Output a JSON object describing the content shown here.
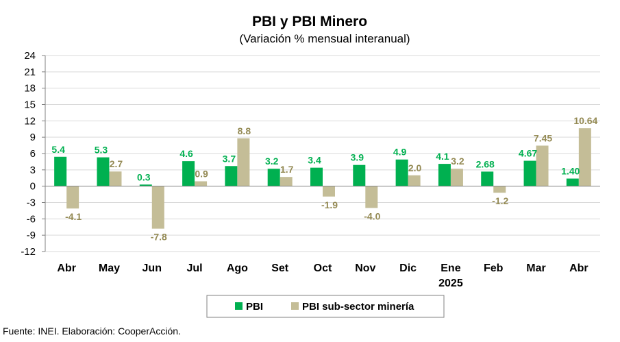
{
  "chart_data": {
    "type": "bar",
    "title": "PBI y PBI Minero",
    "subtitle": "(Variación % mensual interanual)",
    "categories": [
      "Abr",
      "May",
      "Jun",
      "Jul",
      "Ago",
      "Set",
      "Oct",
      "Nov",
      "Dic",
      "Ene",
      "Feb",
      "Mar",
      "Abr"
    ],
    "year_label": "2025",
    "series": [
      {
        "name": "PBI",
        "color": "#00b050",
        "values": [
          5.4,
          5.3,
          0.3,
          4.6,
          3.7,
          3.2,
          3.4,
          3.9,
          4.9,
          4.1,
          2.68,
          4.67,
          1.4
        ],
        "labels": [
          "5.4",
          "5.3",
          "0.3",
          "4.6",
          "3.7",
          "3.2",
          "3.4",
          "3.9",
          "4.9",
          "4.1",
          "2.68",
          "4.67",
          "1.40"
        ]
      },
      {
        "name": "PBI sub-sector minería",
        "color": "#c4bd97",
        "values": [
          -4.1,
          2.7,
          -7.8,
          0.9,
          8.8,
          1.7,
          -1.9,
          -4.0,
          2.0,
          3.2,
          -1.2,
          7.45,
          10.64
        ],
        "labels": [
          "-4.1",
          "2.7",
          "-7.8",
          "0.9",
          "8.8",
          "1.7",
          "-1.9",
          "-4.0",
          "2.0",
          "3.2",
          "-1.2",
          "7.45",
          "10.64"
        ]
      }
    ],
    "ylim": [
      -12,
      24
    ],
    "yticks": [
      24,
      21,
      18,
      15,
      12,
      9,
      6,
      3,
      0,
      -3,
      -6,
      -9,
      -12
    ],
    "grid": true,
    "legend_position": "bottom",
    "source": "Fuente: INEI. Elaboración: CooperAcción.",
    "label_color_pbi": "#00b050",
    "label_color_min": "#948a54"
  }
}
